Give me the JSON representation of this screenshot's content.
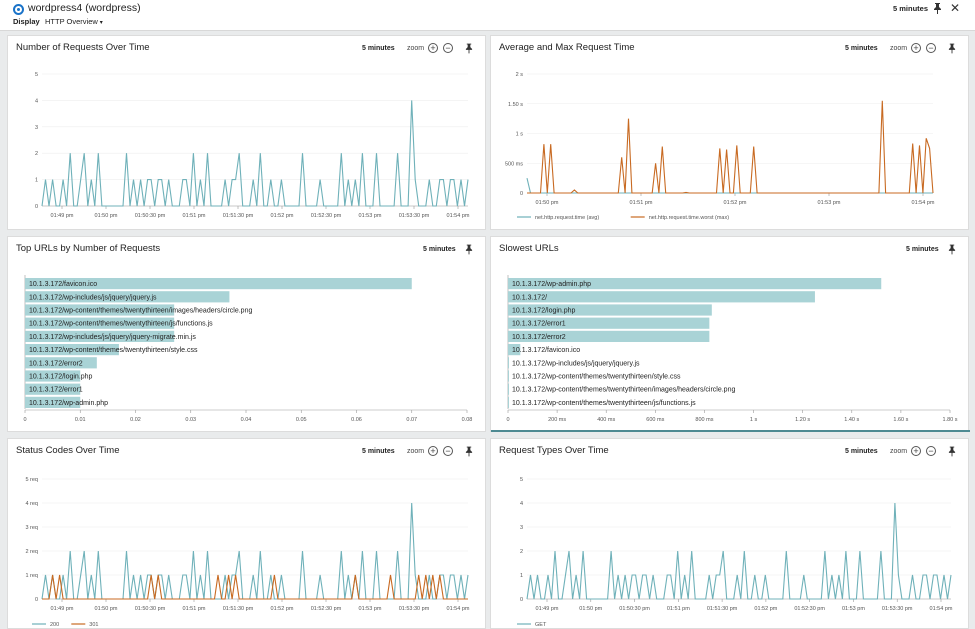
{
  "header": {
    "title": "wordpress4 (wordpress)",
    "display_label": "Display",
    "dashboard_select": "HTTP Overview",
    "time_range": "5 minutes"
  },
  "colors": {
    "teal": "#6fb1b9",
    "orange": "#c86a22",
    "bar": "#a9d3d6",
    "accent": "#1a73c9"
  },
  "time_ticks": [
    "01:49 pm",
    "01:50 pm",
    "01:50:30 pm",
    "01:51 pm",
    "01:51:30 pm",
    "01:52 pm",
    "01:52:30 pm",
    "01:53 pm",
    "01:53:30 pm",
    "01:54 pm"
  ],
  "panels": {
    "requests": {
      "title": "Number of Requests Over Time",
      "range": "5 minutes",
      "zoom": "zoom"
    },
    "avgmax": {
      "title": "Average and Max Request Time",
      "range": "5 minutes",
      "zoom": "zoom"
    },
    "topurls": {
      "title": "Top URLs by Number of Requests",
      "range": "5 minutes"
    },
    "slowest": {
      "title": "Slowest URLs",
      "range": "5 minutes"
    },
    "status": {
      "title": "Status Codes Over Time",
      "range": "5 minutes",
      "zoom": "zoom"
    },
    "reqtypes": {
      "title": "Request Types Over Time",
      "range": "5 minutes",
      "zoom": "zoom"
    }
  },
  "chart_data": [
    {
      "id": "requests",
      "type": "line",
      "title": "Number of Requests Over Time",
      "ylim": [
        0,
        5
      ],
      "yticks": [
        "0",
        "1",
        "2",
        "3",
        "4",
        "5"
      ],
      "xticks": [
        "01:49 pm",
        "01:50 pm",
        "01:50:30 pm",
        "01:51 pm",
        "01:51:30 pm",
        "01:52 pm",
        "01:52:30 pm",
        "01:53 pm",
        "01:53:30 pm",
        "01:54 pm"
      ],
      "series": [
        {
          "name": "requests",
          "color": "#6fb1b9",
          "values": [
            0,
            1,
            0,
            1,
            0,
            0,
            1,
            0,
            2,
            0,
            0,
            1,
            2,
            0,
            1,
            0,
            2,
            0,
            0,
            0,
            0,
            0,
            0,
            0,
            2,
            0,
            1,
            0,
            1,
            0,
            1,
            1,
            0,
            1,
            1,
            0,
            1,
            0,
            0,
            0,
            1,
            1,
            0,
            2,
            0,
            1,
            0,
            2,
            0,
            0,
            0,
            0,
            1,
            0,
            1,
            1,
            2,
            0,
            0,
            0,
            1,
            0,
            2,
            0,
            0,
            1,
            0,
            0,
            1,
            0,
            0,
            0,
            0,
            0,
            2,
            0,
            0,
            0,
            0,
            1,
            0,
            0,
            0,
            0,
            0,
            2,
            0,
            1,
            0,
            1,
            0,
            2,
            0,
            0,
            0,
            2,
            0,
            0,
            0,
            0,
            0,
            2,
            0,
            0,
            0,
            4,
            1,
            0,
            0,
            0,
            1,
            0,
            0,
            1,
            1,
            0,
            1,
            1,
            0,
            1,
            0,
            1
          ]
        }
      ]
    },
    {
      "id": "avgmax",
      "type": "line",
      "title": "Average and Max Request Time",
      "ylim": [
        0,
        2
      ],
      "yticks": [
        "0",
        "500 ms",
        "1 s",
        "1.50 s",
        "2 s"
      ],
      "xticks": [
        "01:50 pm",
        "01:51 pm",
        "01:52 pm",
        "01:53 pm",
        "01:54 pm"
      ],
      "series": [
        {
          "name": "net.http.request.time (avg)",
          "color": "#6fb1b9",
          "values": [
            0.25,
            0,
            0,
            0,
            0,
            0,
            0,
            0,
            0,
            0,
            0,
            0,
            0,
            0,
            0,
            0,
            0,
            0,
            0,
            0,
            0,
            0,
            0,
            0,
            0,
            0,
            0,
            0,
            0,
            0,
            0,
            0,
            0,
            0,
            0,
            0,
            0,
            0,
            0,
            0,
            0,
            0,
            0,
            0,
            0,
            0,
            0,
            0,
            0,
            0,
            0,
            0,
            0,
            0,
            0,
            0,
            0,
            0,
            0,
            0,
            0,
            0,
            0,
            0,
            0,
            0,
            0,
            0,
            0,
            0,
            0,
            0,
            0,
            0,
            0,
            0,
            0,
            0,
            0,
            0,
            0,
            0,
            0,
            0,
            0,
            0,
            0,
            0,
            0,
            0,
            0,
            0,
            0,
            0,
            0,
            0,
            0,
            0,
            0,
            0,
            0,
            0,
            0,
            0,
            0,
            0,
            0,
            0,
            0,
            0,
            0,
            0,
            0,
            0,
            0,
            0,
            0,
            0
          ]
        },
        {
          "name": "net.http.request.time.worst (max)",
          "color": "#c86a22",
          "values": [
            0,
            0,
            0,
            0,
            0,
            0.82,
            0,
            0.82,
            0,
            0,
            0,
            0,
            0,
            0,
            0.05,
            0,
            0,
            0,
            0,
            0,
            0,
            0,
            0,
            0,
            0,
            0,
            0,
            0,
            0.6,
            0,
            1.25,
            0,
            0,
            0,
            0,
            0,
            0,
            0,
            0.5,
            0,
            0.78,
            0,
            0,
            0,
            0,
            0,
            0,
            0.01,
            0,
            0,
            0,
            0,
            0,
            0,
            0,
            0,
            0,
            0.75,
            0,
            0.73,
            0,
            0,
            0.8,
            0,
            0,
            0,
            0,
            0.78,
            0,
            0,
            0,
            0,
            0,
            0,
            0,
            0,
            0,
            0,
            0,
            0,
            0,
            0,
            0,
            0,
            0,
            0,
            0,
            0,
            0,
            0,
            0,
            0,
            0,
            0,
            0,
            0,
            0,
            0,
            0,
            0,
            0,
            0,
            0,
            0,
            0,
            1.55,
            0,
            0,
            0,
            0,
            0,
            0,
            0,
            0,
            0.83,
            0,
            0.8,
            0,
            0.92,
            0.75,
            0
          ]
        }
      ]
    },
    {
      "id": "topurls",
      "type": "bar",
      "title": "Top URLs by Number of Requests",
      "xlim": [
        0,
        0.08
      ],
      "xticks": [
        "0",
        "0.01",
        "0.02",
        "0.03",
        "0.04",
        "0.05",
        "0.06",
        "0.07",
        "0.08"
      ],
      "categories": [
        "10.1.3.172/favicon.ico",
        "10.1.3.172/wp-includes/js/jquery/jquery.js",
        "10.1.3.172/wp-content/themes/twentythirteen/images/headers/circle.png",
        "10.1.3.172/wp-content/themes/twentythirteen/js/functions.js",
        "10.1.3.172/wp-includes/js/jquery/jquery-migrate.min.js",
        "10.1.3.172/wp-content/themes/twentythirteen/style.css",
        "10.1.3.172/error2",
        "10.1.3.172/login.php",
        "10.1.3.172/error1",
        "10.1.3.172/wp-admin.php"
      ],
      "values": [
        0.07,
        0.037,
        0.027,
        0.027,
        0.027,
        0.017,
        0.013,
        0.01,
        0.01,
        0.01
      ]
    },
    {
      "id": "slowest",
      "type": "bar",
      "title": "Slowest URLs",
      "xlim": [
        0,
        1.8
      ],
      "xticks": [
        "0",
        "200 ms",
        "400 ms",
        "600 ms",
        "800 ms",
        "1 s",
        "1.20 s",
        "1.40 s",
        "1.60 s",
        "1.80 s"
      ],
      "categories": [
        "10.1.3.172/wp-admin.php",
        "10.1.3.172/",
        "10.1.3.172/login.php",
        "10.1.3.172/error1",
        "10.1.3.172/error2",
        "10.1.3.172/favicon.ico",
        "10.1.3.172/wp-includes/js/jquery/jquery.js",
        "10.1.3.172/wp-content/themes/twentythirteen/style.css",
        "10.1.3.172/wp-content/themes/twentythirteen/images/headers/circle.png",
        "10.1.3.172/wp-content/themes/twentythirteen/js/functions.js"
      ],
      "values": [
        1.52,
        1.25,
        0.83,
        0.82,
        0.82,
        0.05,
        0.003,
        0.003,
        0.003,
        0.003
      ]
    },
    {
      "id": "status",
      "type": "line",
      "title": "Status Codes Over Time",
      "ylim": [
        0,
        5
      ],
      "yticks": [
        "0",
        "1 req",
        "2 req",
        "3 req",
        "4 req",
        "5 req"
      ],
      "xticks": [
        "01:49 pm",
        "01:50 pm",
        "01:50:30 pm",
        "01:51 pm",
        "01:51:30 pm",
        "01:52 pm",
        "01:52:30 pm",
        "01:53 pm",
        "01:53:30 pm",
        "01:54 pm"
      ],
      "series": [
        {
          "name": "200",
          "color": "#6fb1b9",
          "values": [
            0,
            1,
            0,
            1,
            0,
            0,
            1,
            0,
            2,
            0,
            0,
            1,
            2,
            0,
            1,
            0,
            2,
            0,
            0,
            0,
            0,
            0,
            0,
            0,
            2,
            0,
            1,
            0,
            1,
            0,
            1,
            1,
            0,
            1,
            1,
            0,
            1,
            0,
            0,
            0,
            1,
            1,
            0,
            2,
            0,
            1,
            0,
            2,
            0,
            0,
            0,
            0,
            1,
            0,
            1,
            1,
            2,
            0,
            0,
            0,
            1,
            0,
            2,
            0,
            0,
            1,
            0,
            0,
            1,
            0,
            0,
            0,
            0,
            0,
            2,
            0,
            0,
            0,
            0,
            1,
            0,
            0,
            0,
            0,
            0,
            2,
            0,
            1,
            0,
            1,
            0,
            2,
            0,
            0,
            0,
            2,
            0,
            0,
            0,
            0,
            0,
            2,
            0,
            0,
            0,
            4,
            1,
            0,
            0,
            0,
            1,
            0,
            0,
            1,
            1,
            0,
            1,
            1,
            0,
            1,
            0,
            1
          ]
        },
        {
          "name": "301",
          "color": "#c86a22",
          "values": [
            0,
            0,
            0,
            1,
            0,
            1,
            0,
            0,
            0,
            0,
            0,
            0,
            0,
            0,
            0,
            0,
            0,
            0,
            0,
            0,
            0,
            0,
            0,
            0,
            0,
            0,
            0,
            0,
            0,
            0,
            0,
            1,
            0,
            1,
            0,
            0,
            0,
            0,
            0,
            0,
            0,
            0,
            0,
            0,
            0,
            0,
            0,
            0,
            0,
            0,
            1,
            0,
            0,
            1,
            0,
            1,
            0,
            0,
            0,
            0,
            0,
            0,
            0,
            0,
            0,
            0,
            1,
            0,
            0,
            0,
            0,
            0,
            0,
            0,
            0,
            0,
            0,
            0,
            0,
            0,
            0,
            0,
            0,
            0,
            0,
            0,
            0,
            0,
            0,
            1,
            0,
            0,
            0,
            0,
            0,
            0,
            0,
            0,
            0,
            1,
            0,
            0,
            0,
            0,
            0,
            0,
            0,
            1,
            0,
            1,
            0,
            1,
            0,
            1,
            0,
            0,
            0,
            0,
            0,
            0,
            0,
            0
          ]
        }
      ]
    },
    {
      "id": "reqtypes",
      "type": "line",
      "title": "Request Types Over Time",
      "ylim": [
        0,
        5
      ],
      "yticks": [
        "0",
        "1",
        "2",
        "3",
        "4",
        "5"
      ],
      "xticks": [
        "01:49 pm",
        "01:50 pm",
        "01:50:30 pm",
        "01:51 pm",
        "01:51:30 pm",
        "01:52 pm",
        "01:52:30 pm",
        "01:53 pm",
        "01:53:30 pm",
        "01:54 pm"
      ],
      "series": [
        {
          "name": "GET",
          "color": "#6fb1b9",
          "values": [
            0,
            1,
            0,
            1,
            0,
            0,
            1,
            0,
            2,
            0,
            0,
            1,
            2,
            0,
            1,
            0,
            2,
            0,
            0,
            0,
            0,
            0,
            0,
            0,
            2,
            0,
            1,
            0,
            1,
            0,
            1,
            1,
            0,
            1,
            1,
            0,
            1,
            0,
            0,
            0,
            1,
            1,
            0,
            2,
            0,
            1,
            0,
            2,
            0,
            0,
            0,
            0,
            1,
            0,
            1,
            1,
            2,
            0,
            0,
            0,
            1,
            0,
            2,
            0,
            0,
            1,
            0,
            0,
            1,
            0,
            0,
            0,
            0,
            0,
            2,
            0,
            0,
            0,
            0,
            1,
            0,
            0,
            0,
            0,
            0,
            2,
            0,
            1,
            0,
            1,
            0,
            2,
            0,
            0,
            0,
            2,
            0,
            0,
            0,
            0,
            0,
            2,
            0,
            0,
            0,
            4,
            1,
            0,
            0,
            0,
            1,
            0,
            0,
            1,
            1,
            0,
            1,
            1,
            0,
            1,
            0,
            1
          ]
        }
      ]
    }
  ]
}
